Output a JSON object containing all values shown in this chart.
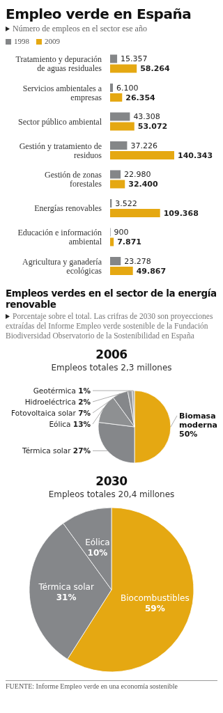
{
  "chart_data": [
    {
      "type": "bar",
      "orientation": "horizontal",
      "title": "Empleo verde en España",
      "subtitle": "Número de empleos en el sector ese año",
      "legend": "top left",
      "categories": [
        "Tratamiento y depuración de aguas residuales",
        "Servicios ambientales a empresas",
        "Sector público ambiental",
        "Gestión y tratamiento de residuos",
        "Gestión de zonas forestales",
        "Energías renovables",
        "Educación e información ambiental",
        "Agricultura y ganadería ecológicas"
      ],
      "series": [
        {
          "name": "1998",
          "color": "#848688",
          "values": [
            15357,
            6100,
            43308,
            37226,
            22980,
            3522,
            900,
            23278
          ],
          "value_labels": [
            "15.357",
            "6.100",
            "43.308",
            "37.226",
            "22.980",
            "3.522",
            "900",
            "23.278"
          ]
        },
        {
          "name": "2009",
          "color": "#e5a812",
          "values": [
            58264,
            26354,
            53072,
            140343,
            32400,
            109368,
            7871,
            49867
          ],
          "value_labels": [
            "58.264",
            "26.354",
            "53.072",
            "140.343",
            "32.400",
            "109.368",
            "7.871",
            "49.867"
          ]
        }
      ]
    },
    {
      "type": "pie",
      "title": "2006",
      "subtitle": "Empleos totales 2,3 millones",
      "annotations": [
        "Empleos verdes en el sector de la energía renovable",
        "Porcentaje sobre el total. Las crifras de 2030 son proyecciones extraídas del Informe Empleo verde sostenible de la Fundación Biodiversidad Observatorio de la Sostenibilidad en España"
      ],
      "categories": [
        "Biomasa moderna",
        "Térmica solar",
        "Eólica",
        "Fotovoltaica solar",
        "Hidroeléctrica",
        "Geotérmica"
      ],
      "values": [
        50,
        27,
        13,
        7,
        2,
        1
      ],
      "value_labels": [
        "50%",
        "27%",
        "13%",
        "7%",
        "2%",
        "1%"
      ],
      "colors": [
        "#e5a812",
        "#85878a",
        "#8e9092",
        "#85878a",
        "#9a9c9e",
        "#a8aaac"
      ]
    },
    {
      "type": "pie",
      "title": "2030",
      "subtitle": "Empleos totales 20,4 millones",
      "annotations": [
        "FUENTE: Informe Empleo verde en una economía sostenible"
      ],
      "categories": [
        "Biocombustibles",
        "Térmica solar",
        "Eólica"
      ],
      "values": [
        59,
        31,
        10
      ],
      "value_labels": [
        "59%",
        "31%",
        "10%"
      ],
      "colors": [
        "#e5a812",
        "#85878a",
        "#85878a"
      ]
    }
  ]
}
